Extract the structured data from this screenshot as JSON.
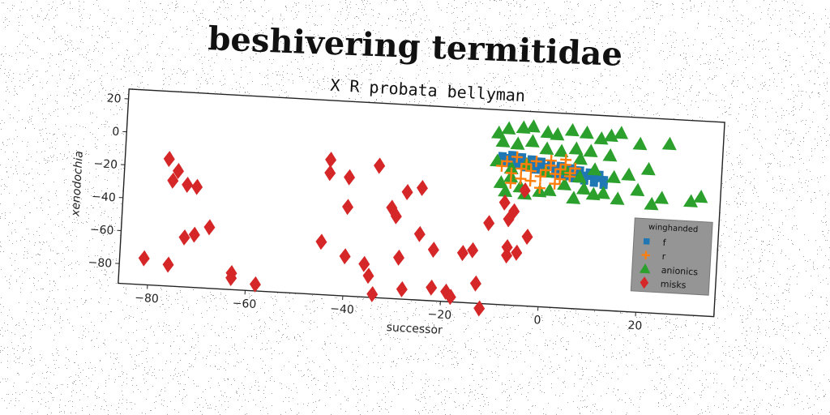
{
  "title": "beshivering termitidae",
  "chart_data": {
    "type": "scatter",
    "subtitle": "X R probata bellyman",
    "xlabel": "successor",
    "ylabel": "xenodochia",
    "xlim": [
      -86,
      36
    ],
    "ylim": [
      -92,
      26
    ],
    "xticks": [
      -80,
      -60,
      -40,
      -20,
      0,
      20
    ],
    "yticks": [
      20,
      0,
      -20,
      -40,
      -60,
      -80
    ],
    "grid": false,
    "legend": {
      "title": "winghanded",
      "placement": "right"
    },
    "series": [
      {
        "name": "f",
        "marker": "square",
        "color": "#1f77b4",
        "x": [
          -9,
          -8,
          -7,
          -6,
          -5,
          -4,
          -3,
          -2,
          -1,
          0,
          1,
          2,
          3,
          4,
          5,
          6,
          7,
          8,
          9,
          10,
          11,
          12,
          -8,
          -6,
          -4,
          -2,
          0,
          2,
          4,
          6,
          8,
          10,
          12,
          -7,
          -5,
          -3,
          -1,
          1,
          3,
          5,
          7,
          9,
          11
        ],
        "y": [
          -2,
          -3,
          -3,
          -4,
          -4,
          -5,
          -5,
          -6,
          -6,
          -7,
          -7,
          -8,
          -8,
          -9,
          -9,
          -10,
          -10,
          -11,
          -11,
          -12,
          -12,
          -13,
          -6,
          -7,
          -8,
          -9,
          -10,
          -11,
          -12,
          -13,
          -14,
          -15,
          -16,
          -1,
          -2,
          -3,
          -4,
          -5,
          -6,
          -7,
          -8,
          -9,
          -10
        ]
      },
      {
        "name": "r",
        "marker": "plus",
        "color": "#ff7f0e",
        "x": [
          -9,
          -8,
          -7,
          -6,
          -5,
          -4,
          -3,
          -2,
          -1,
          0,
          1,
          2,
          3,
          4,
          5,
          6,
          -7,
          -3,
          1,
          3,
          -1,
          5,
          -5,
          2,
          4
        ],
        "y": [
          -8,
          -5,
          -12,
          -2,
          -15,
          -6,
          -10,
          -4,
          -13,
          -9,
          -6,
          -11,
          -8,
          -5,
          -12,
          -7,
          -18,
          -16,
          -3,
          -14,
          -20,
          -10,
          -9,
          -17,
          -2
        ]
      },
      {
        "name": "anionics",
        "marker": "triangle",
        "color": "#2ca02c",
        "x": [
          -10,
          -8,
          -5,
          -3,
          0,
          2,
          5,
          8,
          11,
          13,
          15,
          19,
          25,
          -9,
          -6,
          -3,
          0,
          3,
          6,
          9,
          13,
          -10,
          -7,
          -4,
          0,
          4,
          7,
          10,
          14,
          17,
          21,
          -9,
          -5,
          -1,
          4,
          8,
          12,
          19,
          24,
          32,
          -8,
          -4,
          1,
          6,
          10,
          15,
          22,
          30,
          -7,
          7
        ],
        "y": [
          12,
          15,
          16,
          17,
          14,
          13,
          16,
          15,
          12,
          14,
          16,
          10,
          11,
          7,
          6,
          8,
          4,
          3,
          5,
          4,
          2,
          -5,
          -9,
          -6,
          -10,
          -8,
          -12,
          -7,
          -11,
          -9,
          -5,
          -18,
          -20,
          -22,
          -17,
          -19,
          -21,
          -18,
          -22,
          -20,
          -23,
          -24,
          -21,
          -25,
          -22,
          -24,
          -26,
          -23,
          -14,
          -1
        ]
      },
      {
        "name": "misks",
        "marker": "diamond",
        "color": "#d62728",
        "x": [
          -77,
          -75,
          -76,
          -73,
          -71,
          -81,
          -76,
          -73,
          -71,
          -68,
          -63,
          -63,
          -58,
          -45,
          -44,
          -44,
          -40,
          -40,
          -40,
          -36,
          -35,
          -34,
          -34,
          -34,
          -31,
          -30,
          -29,
          -28,
          -28,
          -25,
          -25,
          -22,
          -22,
          -19,
          -18,
          -16,
          -14,
          -13,
          -12,
          -11,
          -8,
          -7,
          -7,
          -7,
          -6,
          -5,
          -4,
          -3
        ],
        "y": [
          -15,
          -22,
          -28,
          -30,
          -31,
          -76,
          -79,
          -62,
          -60,
          -55,
          -82,
          -85,
          -88,
          -60,
          -10,
          -18,
          -20,
          -68,
          -38,
          -72,
          -79,
          -12,
          -90,
          -12,
          -37,
          -42,
          -67,
          -27,
          -86,
          -24,
          -52,
          -84,
          -61,
          -86,
          -89,
          -62,
          -60,
          -80,
          -95,
          -43,
          -30,
          -62,
          -57,
          -40,
          -35,
          -60,
          -22,
          -50
        ]
      }
    ]
  }
}
